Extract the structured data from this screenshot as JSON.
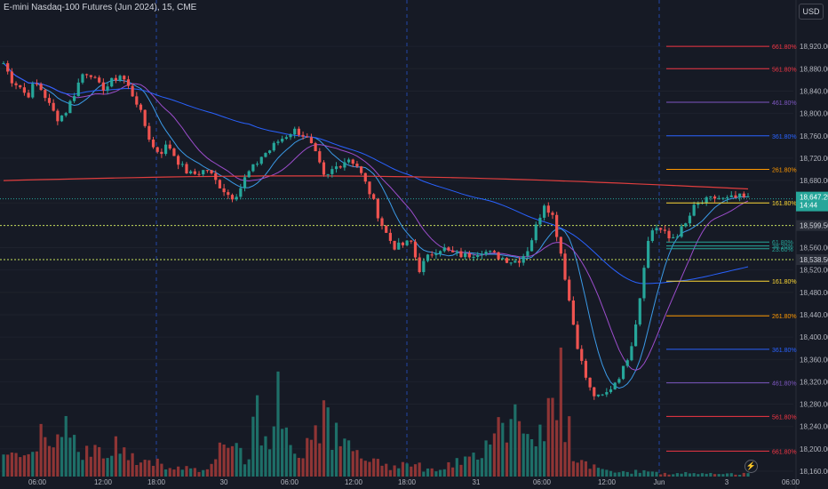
{
  "header": {
    "symbol_title": "E-mini Nasdaq-100 Futures (Jun 2024), 15, CME",
    "currency": "USD"
  },
  "colors": {
    "background": "#161a25",
    "up": "#26a69a",
    "down": "#ef5350",
    "vol_up": "#1e6f68",
    "vol_down": "#8f3535",
    "ma_red": "#e03e3e",
    "ma_blue": "#2962ff",
    "ma_lightblue": "#3b9be8",
    "ma_purple": "#9c4dcc",
    "last_price": "#26a69a",
    "dotted_level": "#c6e05a"
  },
  "chart_data": {
    "type": "candlestick",
    "title": "E-mini Nasdaq-100 Futures (Jun 2024), 15, CME",
    "ylim": [
      18160,
      18960
    ],
    "y_ticks": [
      "18,920.00",
      "18,880.00",
      "18,840.00",
      "18,800.00",
      "18,760.00",
      "18,720.00",
      "18,680.00",
      "18,640.00",
      "18,600.00",
      "18,560.00",
      "18,520.00",
      "18,480.00",
      "18,440.00",
      "18,400.00",
      "18,360.00",
      "18,320.00",
      "18,280.00",
      "18,240.00",
      "18,200.00",
      "18,160.00"
    ],
    "x_ticks": [
      "06:00",
      "12:00",
      "18:00",
      "30",
      "06:00",
      "12:00",
      "18:00",
      "31",
      "06:00",
      "12:00",
      "Jun",
      "3",
      "06:00"
    ],
    "session_separators": [
      "18:00",
      "18:00",
      "Jun"
    ],
    "last_price": {
      "value": "18,647.25",
      "countdown": "14:44"
    },
    "price_labels": [
      {
        "value": "18,599.50",
        "style": "dotted"
      },
      {
        "value": "18,538.50",
        "style": "dotted"
      }
    ],
    "fib_levels": [
      {
        "label": "661.80%",
        "price": 18920,
        "color": "#f23645"
      },
      {
        "label": "561.80%",
        "price": 18880,
        "color": "#f23645"
      },
      {
        "label": "461.80%",
        "price": 18820,
        "color": "#7e57c2"
      },
      {
        "label": "361.80%",
        "price": 18760,
        "color": "#2962ff"
      },
      {
        "label": "261.80%",
        "price": 18700,
        "color": "#ff9800"
      },
      {
        "label": "161.80%",
        "price": 18640,
        "color": "#fdd835"
      },
      {
        "label": "61.80%",
        "price": 18570,
        "color": "#26a69a"
      },
      {
        "label": "38.20%",
        "price": 18563,
        "color": "#26a69a"
      },
      {
        "label": "23.60%",
        "price": 18558,
        "color": "#26a69a"
      },
      {
        "label": "161.80%",
        "price": 18500,
        "color": "#fdd835"
      },
      {
        "label": "261.80%",
        "price": 18438,
        "color": "#ff9800"
      },
      {
        "label": "361.80%",
        "price": 18378,
        "color": "#2962ff"
      },
      {
        "label": "461.80%",
        "price": 18318,
        "color": "#7e57c2"
      },
      {
        "label": "561.80%",
        "price": 18258,
        "color": "#f23645"
      },
      {
        "label": "661.80%",
        "price": 18196,
        "color": "#f23645"
      }
    ],
    "price_path": [
      18890,
      18860,
      18850,
      18830,
      18855,
      18840,
      18810,
      18790,
      18805,
      18835,
      18870,
      18875,
      18850,
      18845,
      18860,
      18870,
      18845,
      18820,
      18780,
      18740,
      18730,
      18745,
      18720,
      18700,
      18690,
      18695,
      18700,
      18680,
      18665,
      18650,
      18660,
      18690,
      18705,
      18725,
      18735,
      18750,
      18760,
      18770,
      18765,
      18750,
      18720,
      18680,
      18700,
      18710,
      18720,
      18710,
      18680,
      18650,
      18610,
      18580,
      18560,
      18565,
      18570,
      18520,
      18540,
      18555,
      18560,
      18550,
      18548,
      18545,
      18550,
      18555,
      18550,
      18545,
      18540,
      18535,
      18540,
      18560,
      18600,
      18640,
      18620,
      18560,
      18480,
      18400,
      18340,
      18300,
      18290,
      18300,
      18320,
      18340,
      18380,
      18450,
      18560,
      18600,
      18590,
      18575,
      18585,
      18600,
      18630,
      18640,
      18645,
      18650,
      18645,
      18648,
      18650,
      18647
    ],
    "volume_profile": [
      0.12,
      0.18,
      0.15,
      0.22,
      0.3,
      0.35,
      0.25,
      0.3,
      0.45,
      0.3,
      0.2,
      0.18,
      0.2,
      0.15,
      0.22,
      0.2,
      0.15,
      0.1,
      0.1,
      0.12,
      0.1,
      0.08,
      0.06,
      0.08,
      0.06,
      0.05,
      0.08,
      0.1,
      0.2,
      0.35,
      0.3,
      0.15,
      0.45,
      0.35,
      0.3,
      0.6,
      0.3,
      0.25,
      0.18,
      0.3,
      0.4,
      0.55,
      0.3,
      0.25,
      0.22,
      0.18,
      0.15,
      0.1,
      0.12,
      0.08,
      0.1,
      0.1,
      0.12,
      0.08,
      0.06,
      0.05,
      0.06,
      0.08,
      0.1,
      0.12,
      0.15,
      0.2,
      0.3,
      0.45,
      0.35,
      0.5,
      0.45,
      0.4,
      0.3,
      0.25,
      0.5,
      0.7,
      0.4,
      0.15,
      0.1,
      0.08,
      0.06,
      0.05,
      0.04,
      0.03,
      0.03,
      0.04,
      0.05,
      0.03,
      0.02,
      0.02,
      0.02,
      0.03,
      0.02,
      0.02,
      0.02,
      0.02,
      0.02,
      0.02,
      0.02,
      0.03
    ]
  }
}
